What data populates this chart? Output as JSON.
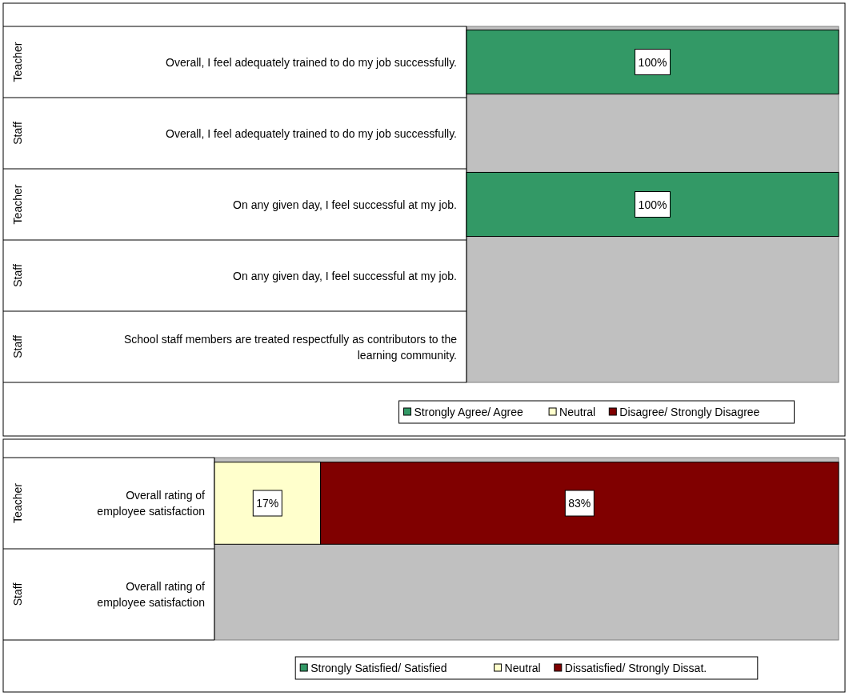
{
  "chart_data": [
    {
      "type": "bar",
      "orientation": "horizontal",
      "stacked": true,
      "categories": [
        "Overall, I feel adequately trained to do my job successfully.",
        "Overall, I feel adequately trained to do my job successfully.",
        "On any given day, I feel successful at my job.",
        "On any given day, I feel successful at my job.",
        "School staff members are treated respectfully as contributors to the learning community."
      ],
      "annotations": [
        "Teacher",
        "Staff",
        "Teacher",
        "Staff",
        "Staff"
      ],
      "legend": "bottom",
      "series": [
        {
          "name": "Strongly Agree/ Agree",
          "color": "#339966",
          "values": [
            100,
            null,
            100,
            null,
            null
          ],
          "value_labels": [
            "100%",
            null,
            "100%",
            null,
            null
          ]
        },
        {
          "name": "Neutral",
          "color": "#ffffcc",
          "values": [
            0,
            null,
            0,
            null,
            null
          ],
          "value_labels": [
            null,
            null,
            null,
            null,
            null
          ]
        },
        {
          "name": "Disagree/ Strongly Disagree",
          "color": "#800000",
          "values": [
            0,
            null,
            0,
            null,
            null
          ],
          "value_labels": [
            null,
            null,
            null,
            null,
            null
          ]
        }
      ]
    },
    {
      "type": "bar",
      "orientation": "horizontal",
      "stacked": true,
      "categories": [
        "Overall rating of employee satisfaction",
        "Overall rating of employee satisfaction"
      ],
      "annotations": [
        "Teacher",
        "Staff"
      ],
      "legend": "bottom",
      "series": [
        {
          "name": "Strongly Satisfied/ Satisfied",
          "color": "#339966",
          "values": [
            0,
            null
          ],
          "value_labels": [
            null,
            null
          ]
        },
        {
          "name": "Neutral",
          "color": "#ffffcc",
          "values": [
            17,
            null
          ],
          "value_labels": [
            "17%",
            null
          ]
        },
        {
          "name": "Dissatisfied/ Strongly Dissat.",
          "color": "#800000",
          "values": [
            83,
            null
          ],
          "value_labels": [
            "83%",
            null
          ]
        }
      ]
    }
  ]
}
